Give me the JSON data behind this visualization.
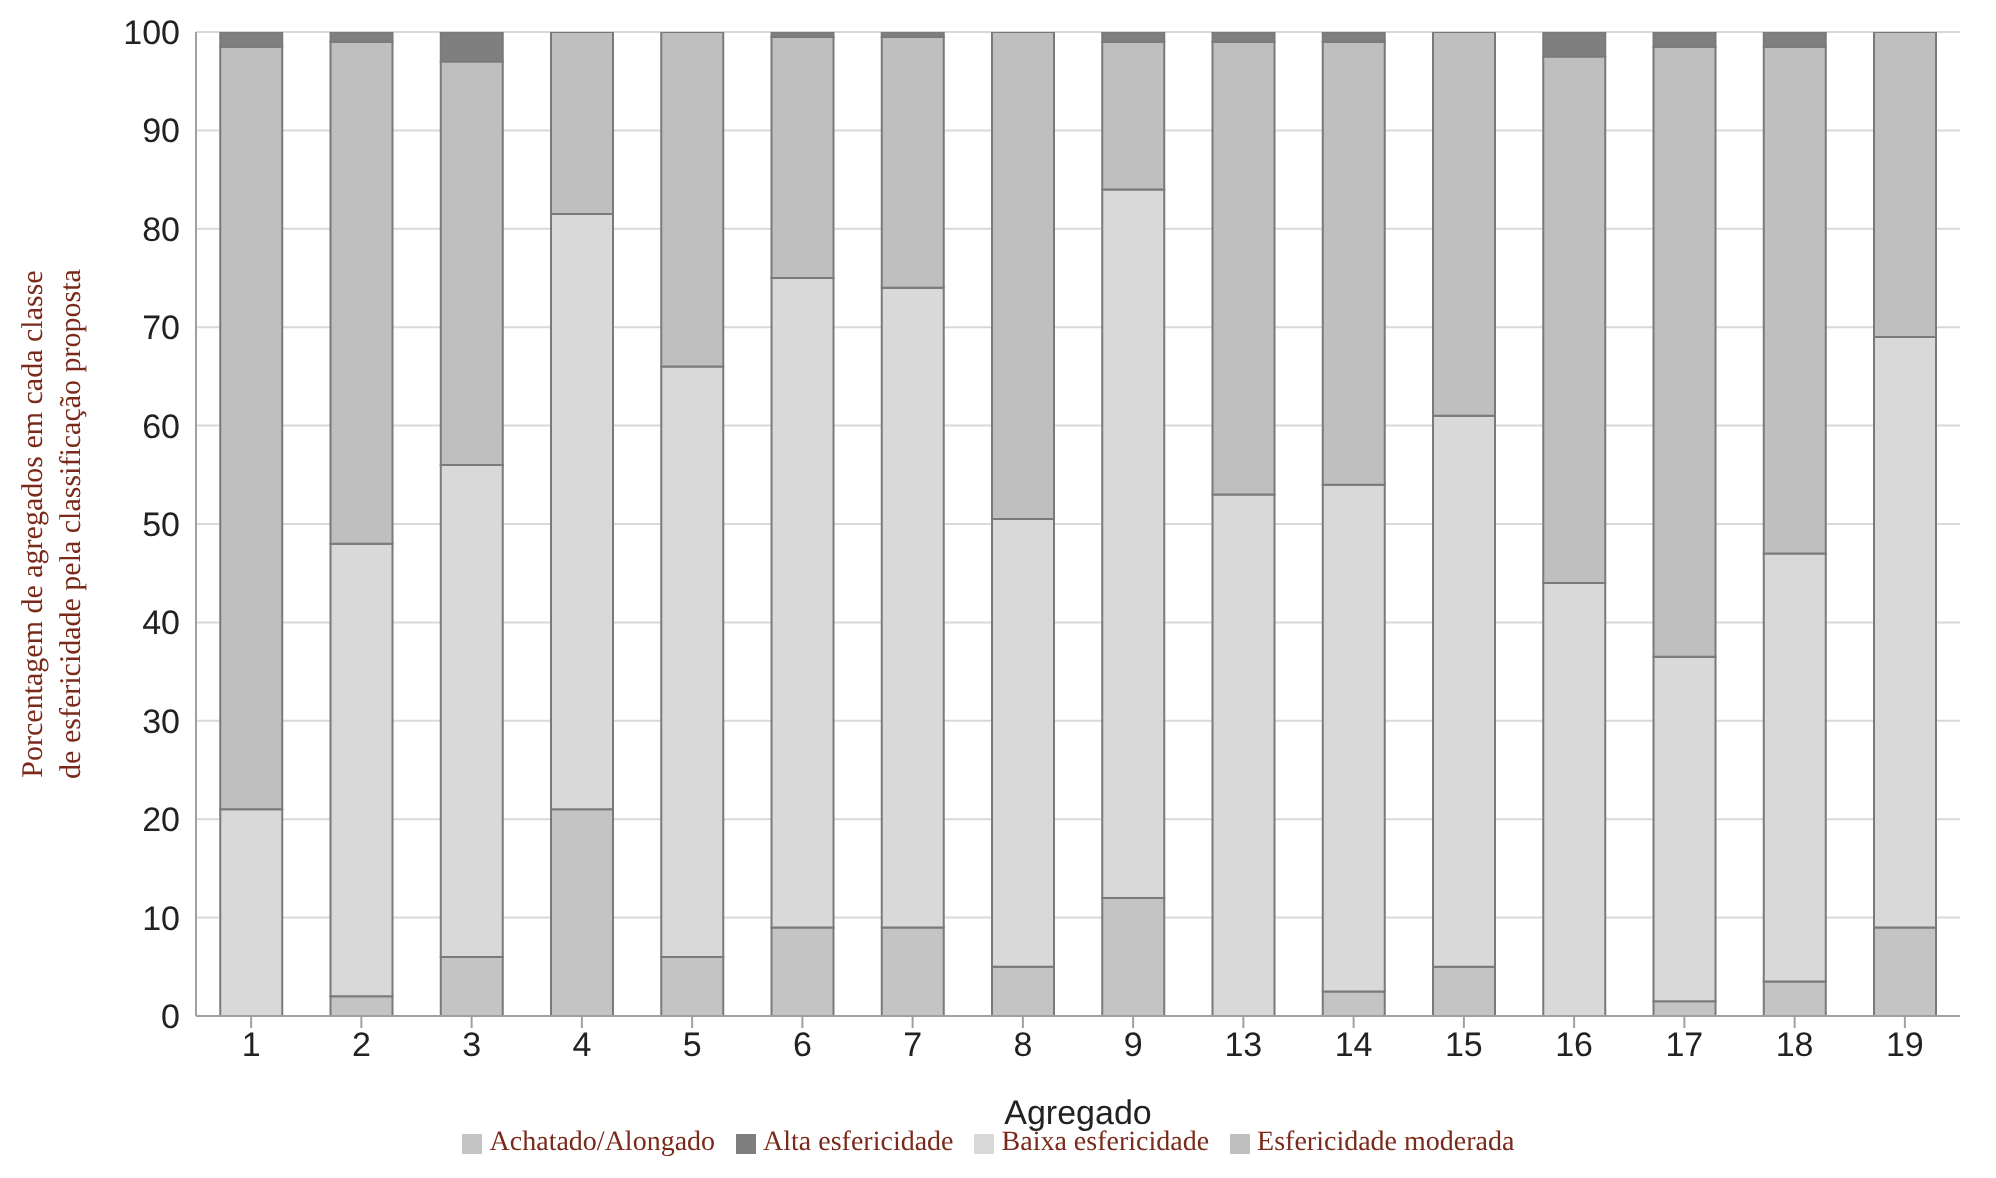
{
  "chart_data": {
    "type": "bar",
    "stacked": true,
    "xlabel": "Agregado",
    "ylabel": "Porcentagem de agregados em cada classe de esfericidade pela classificação proposta",
    "categories": [
      "1",
      "2",
      "3",
      "4",
      "5",
      "6",
      "7",
      "8",
      "9",
      "13",
      "14",
      "15",
      "16",
      "17",
      "18",
      "19"
    ],
    "series": [
      {
        "name": "Achatado/Alongado",
        "color": "#c4c4c4",
        "values": [
          0,
          2,
          6,
          21,
          6,
          9,
          9,
          5,
          12,
          0,
          2.5,
          5,
          0,
          1.5,
          3.5,
          9
        ]
      },
      {
        "name": "Baixa esfericidade",
        "color": "#d9d9d9",
        "values": [
          21,
          46,
          50,
          60.5,
          60,
          66,
          65,
          45.5,
          72,
          53,
          51.5,
          56,
          44,
          35,
          43.5,
          60
        ]
      },
      {
        "name": "Esfericidade moderada",
        "color": "#bfbfbf",
        "values": [
          77.5,
          51,
          41,
          18.5,
          34,
          24.5,
          25.5,
          49.5,
          15,
          46,
          45,
          39,
          53.5,
          62,
          51.5,
          31
        ]
      },
      {
        "name": "Alta esfericidade",
        "color": "#7f7f7f",
        "values": [
          1.5,
          1,
          3,
          0,
          0,
          0.5,
          0.5,
          0,
          1,
          1,
          1,
          0,
          2.5,
          1.5,
          1.5,
          0
        ]
      }
    ],
    "ylim": [
      0,
      100
    ],
    "yticks": [
      0,
      10,
      20,
      30,
      40,
      50,
      60,
      70,
      80,
      90,
      100
    ],
    "grid": "y",
    "legend": "bottom"
  }
}
